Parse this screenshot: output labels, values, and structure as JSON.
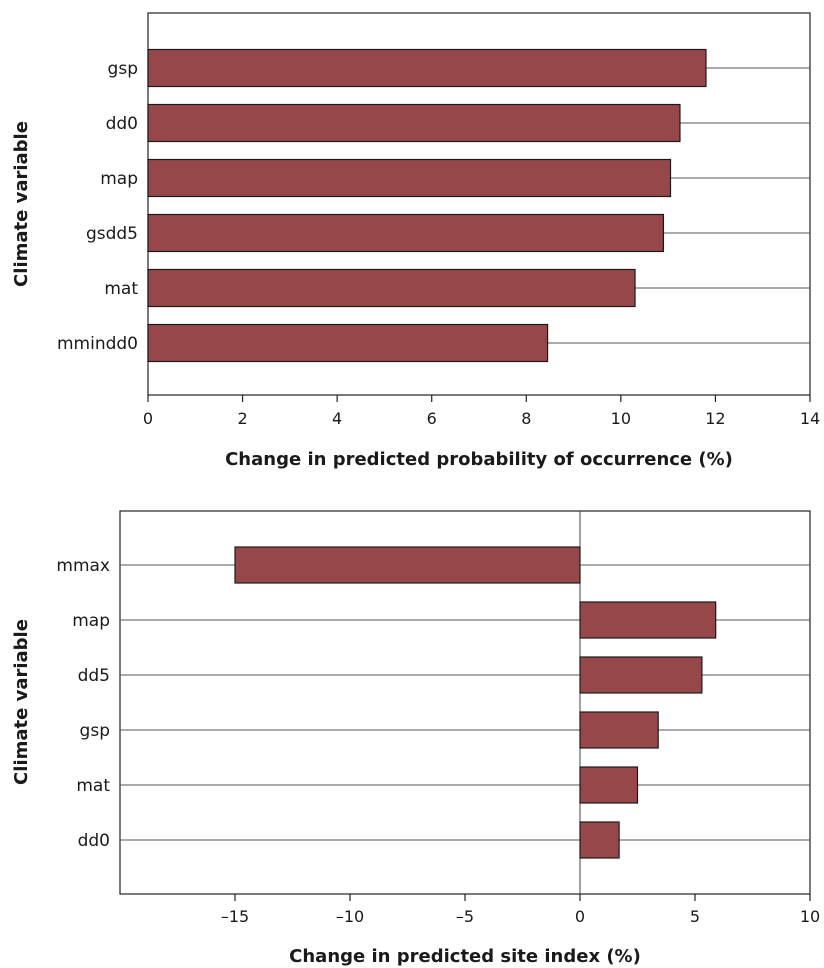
{
  "chart_data": [
    {
      "type": "bar",
      "orientation": "horizontal",
      "categories": [
        "gsp",
        "dd0",
        "map",
        "gsdd5",
        "mat",
        "mmindd0"
      ],
      "values": [
        11.8,
        11.25,
        11.05,
        10.9,
        10.3,
        8.45
      ],
      "xlabel": "Change in predicted probability of occurrence (%)",
      "ylabel": "Climate variable",
      "xlim": [
        0,
        14
      ],
      "xticks": [
        0,
        2,
        4,
        6,
        8,
        10,
        12,
        14
      ],
      "xtick_labels": [
        "0",
        "2",
        "4",
        "6",
        "8",
        "10",
        "12",
        "14"
      ],
      "grid": "horizontal lines at each category",
      "bar_color": "#96474a"
    },
    {
      "type": "bar",
      "orientation": "horizontal",
      "categories": [
        "mmax",
        "map",
        "dd5",
        "gsp",
        "mat",
        "dd0"
      ],
      "values": [
        -15.0,
        5.9,
        5.3,
        3.4,
        2.5,
        1.7
      ],
      "xlabel": "Change in predicted site index (%)",
      "ylabel": "Climate variable",
      "xlim": [
        -20,
        10
      ],
      "xticks": [
        -15,
        -10,
        -5,
        0,
        5,
        10
      ],
      "xtick_labels": [
        "–15",
        "–10",
        "–5",
        "0",
        "5",
        "10"
      ],
      "grid": "horizontal lines at each category; vertical line at 0",
      "bar_color": "#96474a"
    }
  ]
}
